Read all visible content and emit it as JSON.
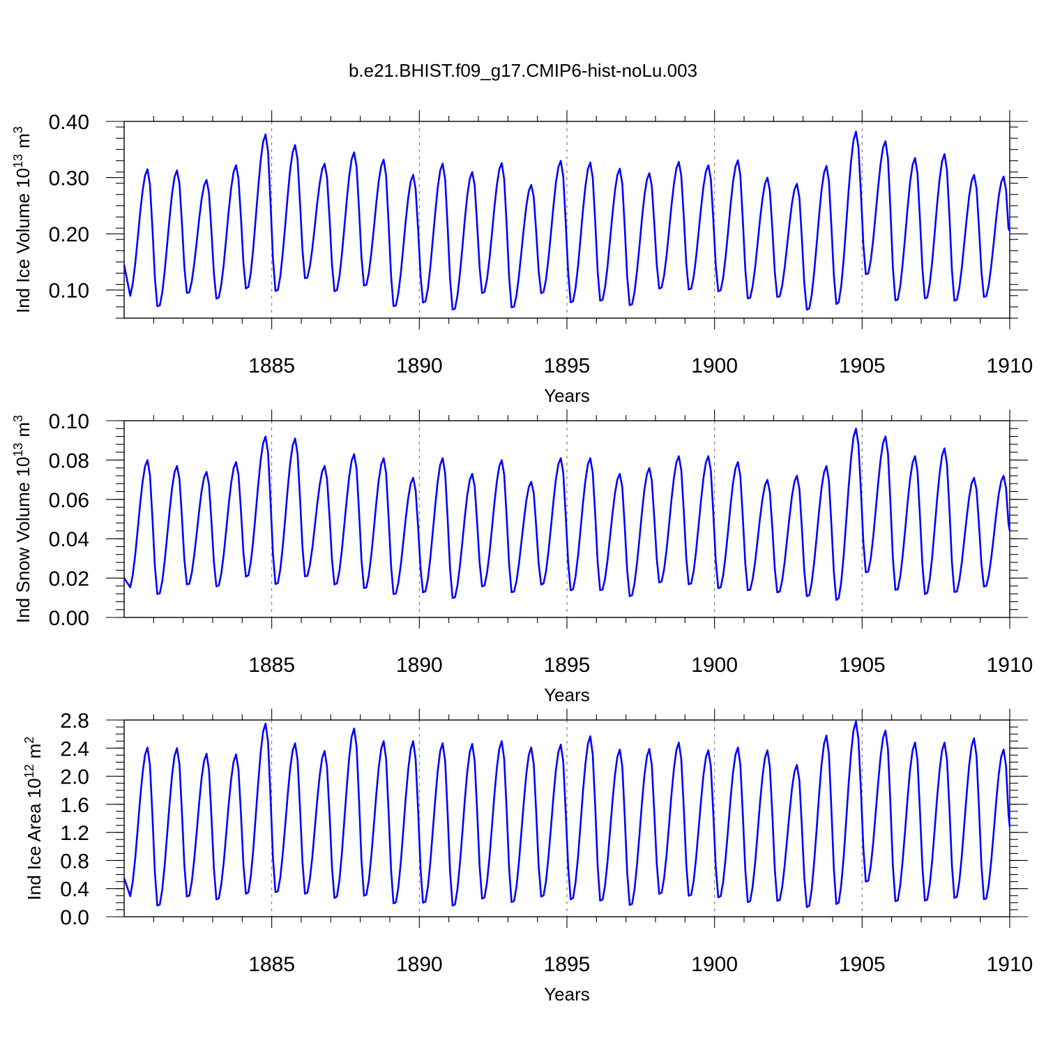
{
  "figure": {
    "title": "b.e21.BHIST.f09_g17.CMIP6-hist-noLu.003",
    "line_color": "#0000ff"
  },
  "chart_data": [
    {
      "type": "line",
      "title": "b.e21.BHIST.f09_g17.CMIP6-hist-noLu.003",
      "xlabel": "Years",
      "ylabel": "Ind Ice Volume 10",
      "ylabel_sup": "13",
      "ylabel_unit": "m",
      "ylabel_unit_sup": "3",
      "xlim": [
        1880,
        1910
      ],
      "ylim": [
        0.05,
        0.4
      ],
      "x_ticks": [
        1885,
        1890,
        1895,
        1900,
        1905,
        1910
      ],
      "y_ticks": [
        0.1,
        0.2,
        0.3,
        0.4
      ],
      "y_tick_labels": [
        "0.10",
        "0.20",
        "0.30",
        "0.40"
      ],
      "gridlines_x": [
        1885,
        1890,
        1895,
        1900,
        1905
      ],
      "series": [
        {
          "name": "Ind Ice Volume",
          "color": "#0000ff",
          "annual_min": [
            0.085,
            0.068,
            0.092,
            0.082,
            0.1,
            0.095,
            0.118,
            0.095,
            0.105,
            0.068,
            0.075,
            0.062,
            0.092,
            0.066,
            0.092,
            0.075,
            0.078,
            0.07,
            0.1,
            0.098,
            0.095,
            0.082,
            0.085,
            0.062,
            0.072,
            0.125,
            0.078,
            0.082,
            0.078,
            0.085
          ],
          "annual_max": [
            0.315,
            0.313,
            0.296,
            0.322,
            0.377,
            0.358,
            0.325,
            0.345,
            0.332,
            0.305,
            0.325,
            0.31,
            0.326,
            0.287,
            0.33,
            0.327,
            0.316,
            0.308,
            0.328,
            0.322,
            0.331,
            0.3,
            0.289,
            0.321,
            0.382,
            0.365,
            0.335,
            0.342,
            0.305,
            0.302
          ],
          "start": 0.145,
          "end": 0.205
        }
      ]
    },
    {
      "type": "line",
      "xlabel": "Years",
      "ylabel": "Ind Snow Volume 10",
      "ylabel_sup": "13",
      "ylabel_unit": "m",
      "ylabel_unit_sup": "3",
      "xlim": [
        1880,
        1910
      ],
      "ylim": [
        0.0,
        0.1
      ],
      "x_ticks": [
        1885,
        1890,
        1895,
        1900,
        1905,
        1910
      ],
      "y_ticks": [
        0.0,
        0.02,
        0.04,
        0.06,
        0.08,
        0.1
      ],
      "y_tick_labels": [
        "0.00",
        "0.02",
        "0.04",
        "0.06",
        "0.08",
        "0.10"
      ],
      "gridlines_x": [
        1885,
        1890,
        1895,
        1900,
        1905
      ],
      "series": [
        {
          "name": "Ind Snow Volume",
          "color": "#0000ff",
          "annual_min": [
            0.014,
            0.011,
            0.016,
            0.015,
            0.02,
            0.016,
            0.02,
            0.016,
            0.014,
            0.011,
            0.012,
            0.009,
            0.015,
            0.012,
            0.016,
            0.013,
            0.013,
            0.01,
            0.017,
            0.016,
            0.014,
            0.013,
            0.012,
            0.01,
            0.008,
            0.022,
            0.013,
            0.011,
            0.012,
            0.015
          ],
          "annual_max": [
            0.08,
            0.077,
            0.074,
            0.079,
            0.092,
            0.091,
            0.077,
            0.083,
            0.081,
            0.071,
            0.081,
            0.073,
            0.08,
            0.069,
            0.081,
            0.081,
            0.073,
            0.076,
            0.082,
            0.082,
            0.079,
            0.07,
            0.072,
            0.077,
            0.096,
            0.092,
            0.082,
            0.086,
            0.071,
            0.072
          ],
          "start": 0.02,
          "end": 0.044
        }
      ]
    },
    {
      "type": "line",
      "xlabel": "Years",
      "ylabel": "Ind Ice Area 10",
      "ylabel_sup": "12",
      "ylabel_unit": "m",
      "ylabel_unit_sup": "2",
      "xlim": [
        1880,
        1910
      ],
      "ylim": [
        0.0,
        2.8
      ],
      "x_ticks": [
        1885,
        1890,
        1895,
        1900,
        1905,
        1910
      ],
      "y_ticks": [
        0.0,
        0.4,
        0.8,
        1.2,
        1.6,
        2.0,
        2.4,
        2.8
      ],
      "y_tick_labels": [
        "0.0",
        "0.4",
        "0.8",
        "1.2",
        "1.6",
        "2.0",
        "2.4",
        "2.8"
      ],
      "gridlines_x": [
        1885,
        1890,
        1895,
        1900,
        1905
      ],
      "series": [
        {
          "name": "Ind Ice Area",
          "color": "#0000ff",
          "annual_min": [
            0.25,
            0.13,
            0.26,
            0.22,
            0.3,
            0.32,
            0.3,
            0.24,
            0.27,
            0.16,
            0.17,
            0.13,
            0.23,
            0.18,
            0.26,
            0.22,
            0.2,
            0.14,
            0.3,
            0.27,
            0.25,
            0.18,
            0.2,
            0.11,
            0.15,
            0.47,
            0.19,
            0.2,
            0.24,
            0.22
          ],
          "annual_max": [
            2.41,
            2.4,
            2.32,
            2.31,
            2.75,
            2.47,
            2.36,
            2.68,
            2.5,
            2.5,
            2.47,
            2.46,
            2.5,
            2.41,
            2.45,
            2.57,
            2.38,
            2.39,
            2.48,
            2.37,
            2.41,
            2.37,
            2.16,
            2.58,
            2.78,
            2.65,
            2.48,
            2.48,
            2.54,
            2.38
          ],
          "start": 0.55,
          "end": 1.28
        }
      ]
    }
  ]
}
